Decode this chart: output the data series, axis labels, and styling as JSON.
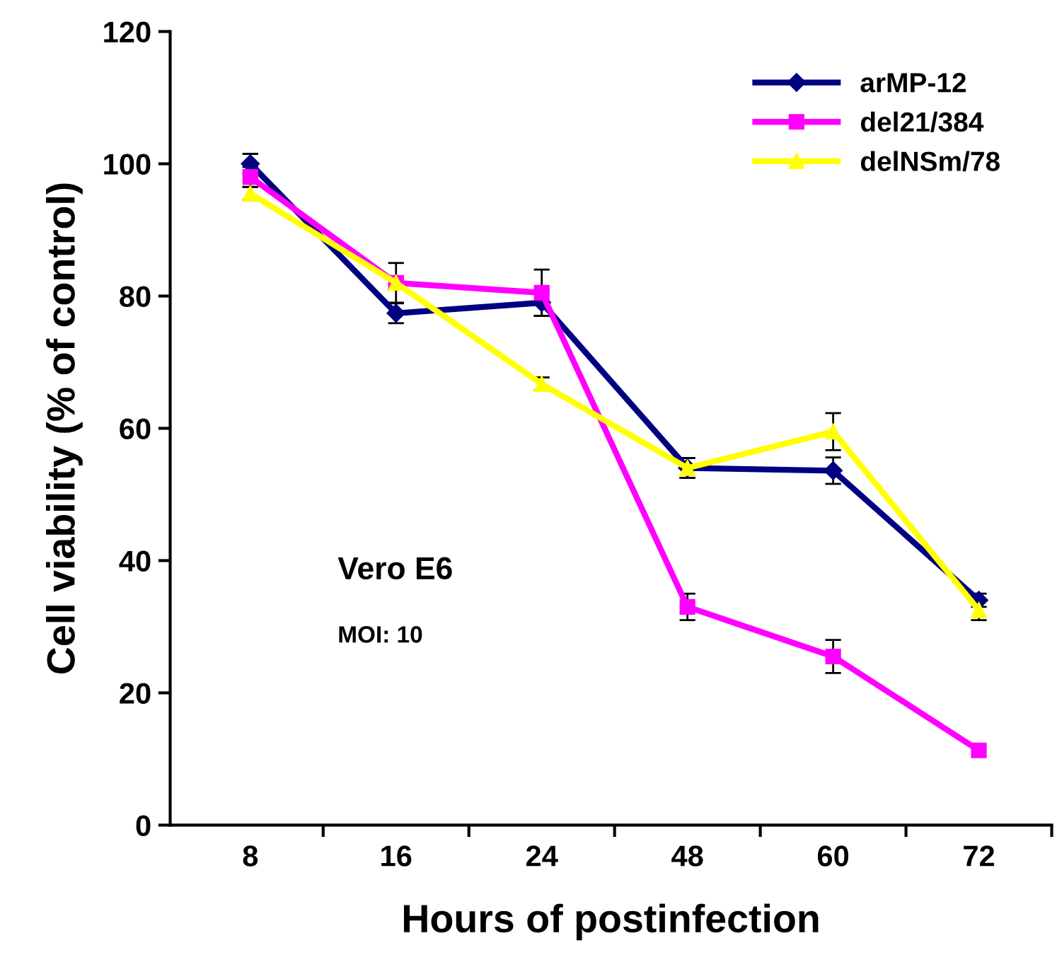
{
  "chart_data": {
    "type": "line",
    "xlabel": "Hours of postinfection",
    "ylabel": "Cell viability (% of control)",
    "categories": [
      "8",
      "16",
      "24",
      "48",
      "60",
      "72"
    ],
    "series": [
      {
        "name": "arMP-12",
        "color": "#000080",
        "marker": "diamond",
        "values": [
          100,
          77.4,
          79,
          54,
          53.6,
          34
        ],
        "errors": [
          1.5,
          1.5,
          2,
          1.5,
          2,
          1
        ]
      },
      {
        "name": "del21/384",
        "color": "#ff00ff",
        "marker": "square",
        "values": [
          98,
          82,
          80.5,
          33,
          25.5,
          11.3
        ],
        "errors": [
          1.5,
          3,
          3.5,
          2,
          2.5,
          null
        ]
      },
      {
        "name": "delNSm/78",
        "color": "#ffff00",
        "marker": "triangle",
        "values": [
          95.5,
          82,
          66.7,
          54,
          59.5,
          32.5
        ],
        "errors": [
          1,
          1,
          1,
          1.5,
          2.8,
          1.5
        ]
      }
    ],
    "ylim": [
      0,
      120
    ],
    "yticks": [
      0,
      20,
      40,
      60,
      80,
      100,
      120
    ],
    "grid": false,
    "legend": "top right",
    "annotations": [
      "Vero E6",
      "MOI: 10"
    ]
  }
}
